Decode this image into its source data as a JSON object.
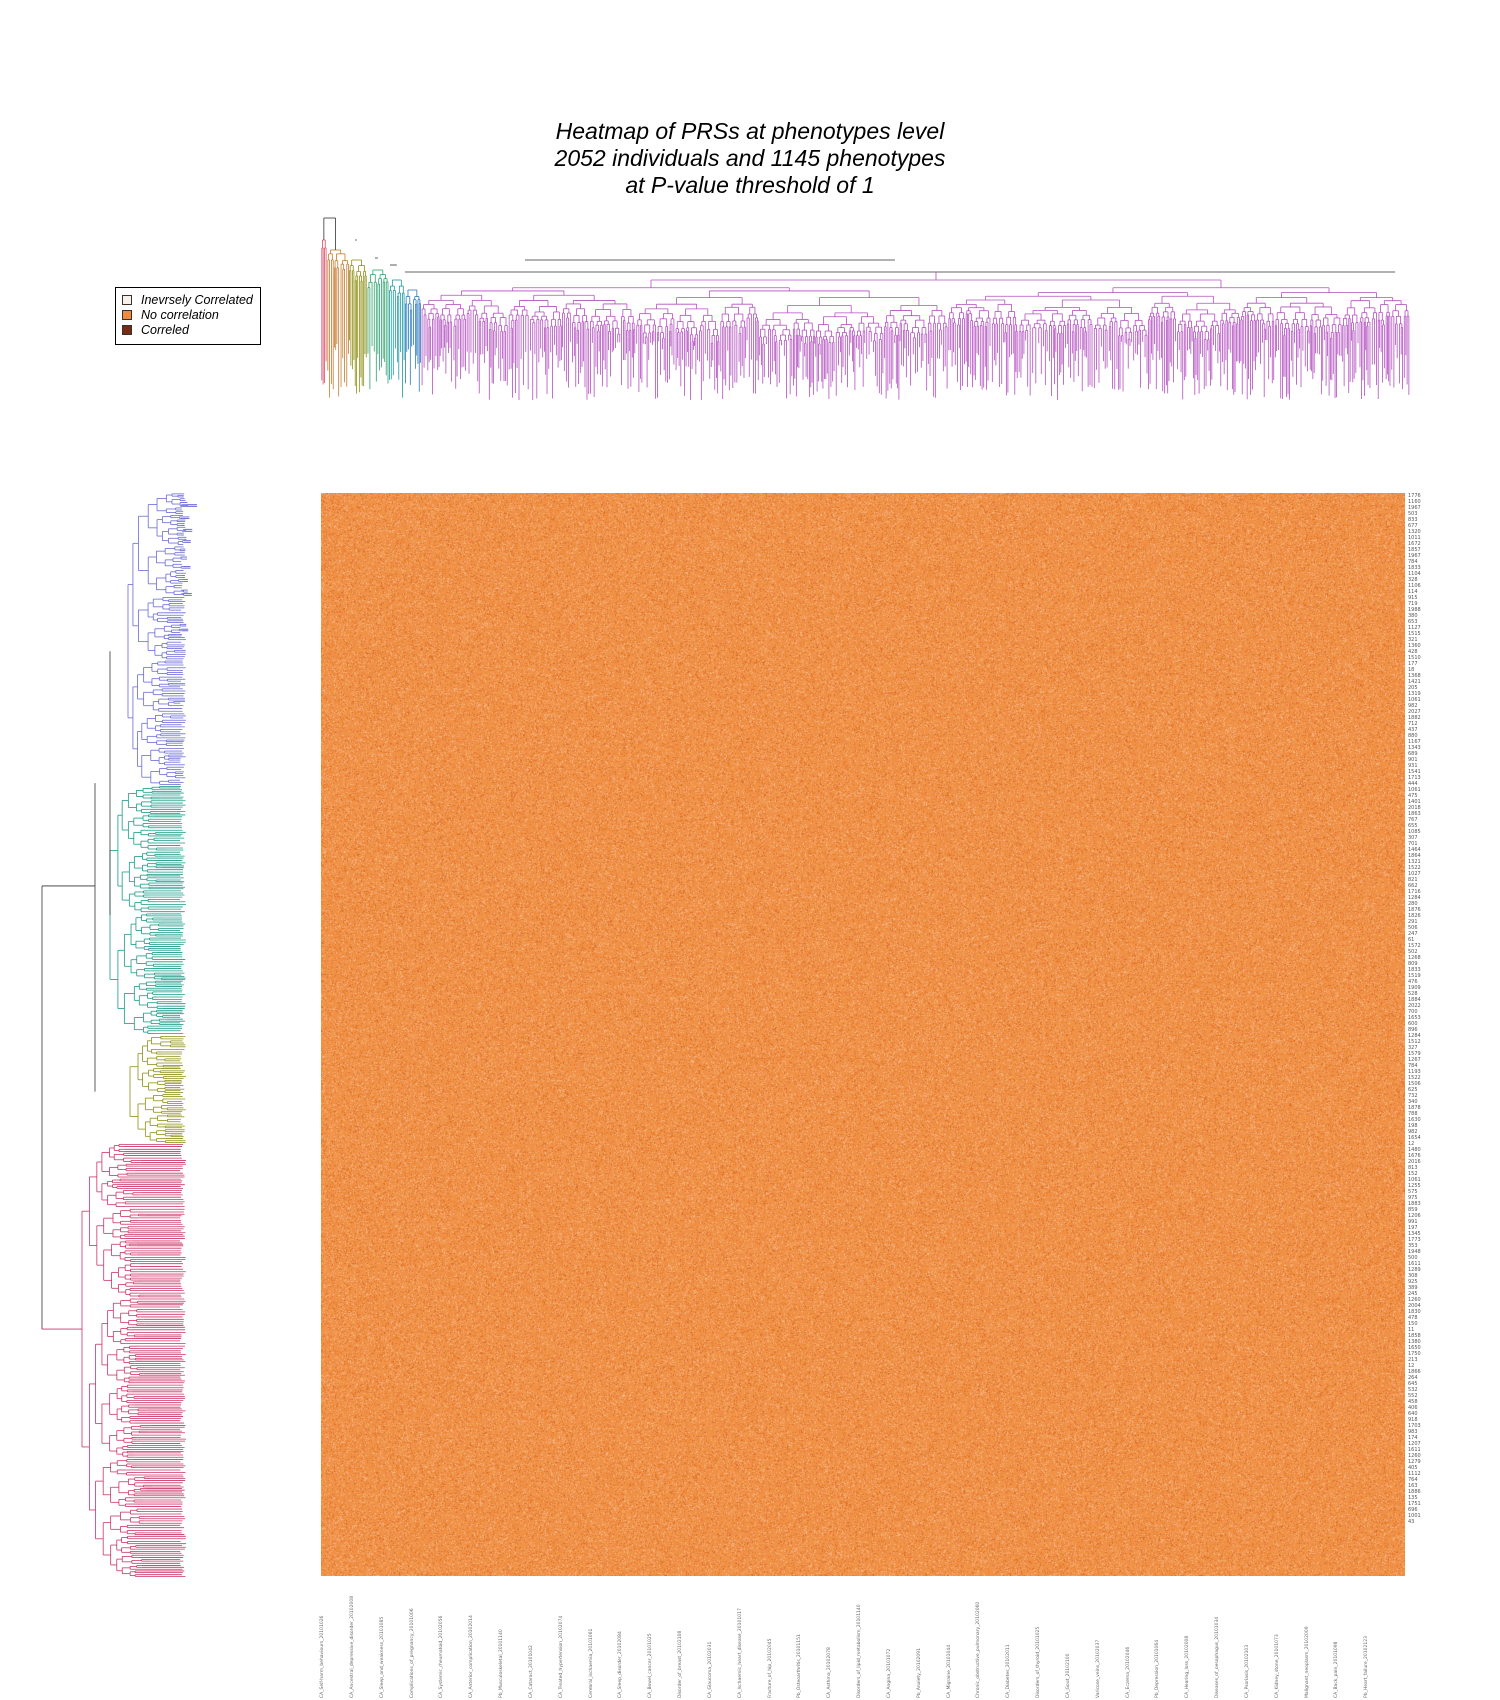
{
  "chart_data": {
    "type": "heatmap",
    "title_lines": [
      "Heatmap of PRSs at phenotypes level",
      "2052 individuals and 1145 phenotypes",
      "at P-value threshold of 1"
    ],
    "rows": 2052,
    "columns": 1145,
    "value_description": "PRS correlation, nearly uniform around no correlation",
    "legend": [
      {
        "label": "Inevrsely Correlated",
        "color": "#f7f1ea"
      },
      {
        "label": "No correlation",
        "color": "#f08a3c"
      },
      {
        "label": "Correled",
        "color": "#7a2a10"
      }
    ],
    "row_dendrogram_clusters": [
      {
        "name": "cluster-blue",
        "color": "#6a6ad6",
        "span": [
          0.0,
          0.27
        ]
      },
      {
        "name": "cluster-teal",
        "color": "#189a86",
        "span": [
          0.27,
          0.5
        ]
      },
      {
        "name": "cluster-olive",
        "color": "#8f8f16",
        "span": [
          0.5,
          0.6
        ]
      },
      {
        "name": "cluster-crimson",
        "color": "#cc3366",
        "span": [
          0.6,
          1.0
        ]
      }
    ],
    "column_dendrogram_colors": [
      "#d94f6a",
      "#c47a2c",
      "#8f8f16",
      "#2aa36c",
      "#1a9aa0",
      "#2b7ac0",
      "#b34fbf"
    ],
    "row_labels": [
      "1776",
      "1160",
      "1967",
      "503",
      "833",
      "677",
      "1320",
      "1011",
      "1672",
      "1857",
      "1967",
      "784",
      "1833",
      "1104",
      "328",
      "1106",
      "114",
      "915",
      "719",
      "1988",
      "380",
      "653",
      "1127",
      "1515",
      "321",
      "1360",
      "428",
      "1510",
      "177",
      "18",
      "1368",
      "1421",
      "205",
      "1319",
      "1061",
      "982",
      "2027",
      "1882",
      "712",
      "437",
      "880",
      "1167",
      "1343",
      "689",
      "901",
      "931",
      "1541",
      "1713",
      "444",
      "1061",
      "475",
      "1401",
      "2018",
      "1863",
      "767",
      "655",
      "1085",
      "307",
      "701",
      "1464",
      "1864",
      "1321",
      "1522",
      "1027",
      "821",
      "662",
      "1716",
      "1284",
      "280",
      "1876",
      "1826",
      "291",
      "506",
      "247",
      "61",
      "1572",
      "502",
      "1268",
      "809",
      "1833",
      "1519",
      "476",
      "1909",
      "528",
      "1884",
      "2022",
      "700",
      "1653",
      "600",
      "896",
      "1284",
      "1512",
      "327",
      "1579",
      "1267",
      "784",
      "1193",
      "1522",
      "1506",
      "625",
      "732",
      "340",
      "1878",
      "788",
      "1630",
      "198",
      "982",
      "1654",
      "12",
      "1480",
      "1676",
      "2016",
      "813",
      "152",
      "1061",
      "1255",
      "575",
      "975",
      "1883",
      "859",
      "1206",
      "991",
      "197",
      "1345",
      "1773",
      "353",
      "1948",
      "500",
      "1611",
      "1289",
      "308",
      "925",
      "389",
      "245",
      "1260",
      "2004",
      "1830",
      "478",
      "150",
      "11",
      "1858",
      "1380",
      "1650",
      "1750",
      "213",
      "12",
      "1866",
      "264",
      "645",
      "532",
      "552",
      "458",
      "406",
      "640",
      "918",
      "1703",
      "983",
      "174",
      "1207",
      "1611",
      "1260",
      "1279",
      "405",
      "1112",
      "764",
      "163",
      "1886",
      "135",
      "1751",
      "696",
      "1001",
      "43"
    ],
    "column_labels": [
      "CA_Self-harm_behaviours_20101026",
      "CA_Ancestral_depressive_disorder_20102008",
      "CA_Sleep_and_weakness_20101085",
      "Complications_of_pregnancy_20101006",
      "CA_Systemic_rheumatoid_20102056",
      "CA_Anterior_complication_20102014",
      "Pb_Musculoskeletal_20101140",
      "CA_Cataract_20101042",
      "CA_Treated_hypertension_20102074",
      "Cerebral_ischaemia_20101061",
      "CA_Sleep_disorder_20102084",
      "CA_Bowel_cancer_20101025",
      "Disorder_of_breast_20102108",
      "CA_Glaucoma_20102031",
      "CA_Ischaemic_heart_disease_20101017",
      "Fracture_of_hip_20102045",
      "Pb_Osteoarthritis_20101151",
      "CA_Asthma_20102078",
      "Disorders_of_lipid_metabolism_20101140",
      "CA_Angina_20101072",
      "Pb_Anxiety_20102091",
      "CA_Migraine_20101044",
      "Chronic_obstructive_pulmonary_20102060",
      "CA_Diabetes_20102011",
      "Disorders_of_thyroid_20101025",
      "CA_Gout_20102100",
      "Varicose_veins_20102037",
      "CA_Eczema_20102046",
      "Pb_Depression_20101064",
      "CA_Hearing_loss_20102008",
      "Diseases_of_oesophagus_20101034",
      "CA_Psoriasis_20102103",
      "CA_Kidney_stone_20101073",
      "Malignant_neoplasm_20102009",
      "CA_Back_pain_20101098",
      "Pb_Heart_failure_20102123"
    ]
  }
}
